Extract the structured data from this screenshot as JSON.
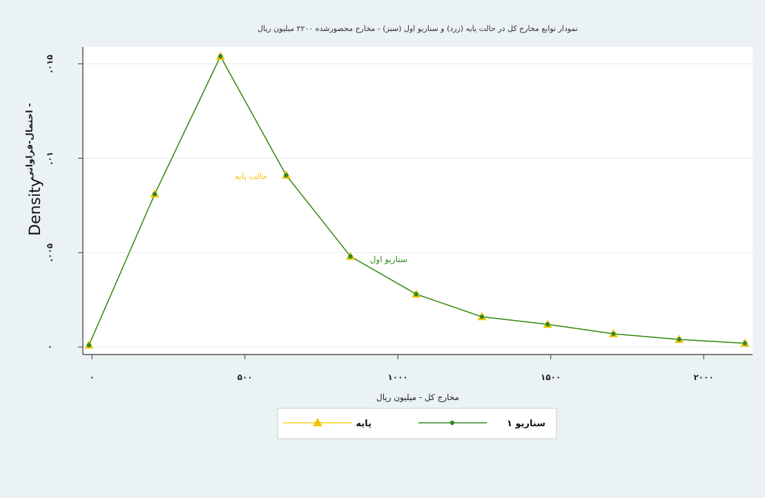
{
  "chart_data": {
    "type": "line",
    "title": "نمودار توابع مخارج کل در حالت پایه (زرد) و سناریو اول (سبز) - مخارج محصورشده ۲۲۰۰ میلیون ریال",
    "xlabel": "مخارج کل - میلیون ریال",
    "ylabel_main": "Density",
    "ylabel_sub": "احتمال-فراوانی -",
    "xlim": [
      -30,
      2160
    ],
    "ylim": [
      -0.0004,
      0.0159
    ],
    "x_ticks": [
      {
        "value": 0,
        "label": "۰"
      },
      {
        "value": 500,
        "label": "۵۰۰"
      },
      {
        "value": 1000,
        "label": "۱۰۰۰"
      },
      {
        "value": 1500,
        "label": "۱۵۰۰"
      },
      {
        "value": 2000,
        "label": "۲۰۰۰"
      }
    ],
    "y_ticks": [
      {
        "value": 0,
        "label": "۰"
      },
      {
        "value": 0.005,
        "label": ".۰۰۵"
      },
      {
        "value": 0.01,
        "label": ".۰۱"
      },
      {
        "value": 0.015,
        "label": ".۰۱۵"
      }
    ],
    "grid": true,
    "x": [
      -10,
      205,
      420,
      635,
      845,
      1060,
      1275,
      1490,
      1705,
      1920,
      2135
    ],
    "series": [
      {
        "name": "پایه",
        "color": "#f2d21a",
        "marker": "triangle",
        "values": [
          0.0001,
          0.0081,
          0.0154,
          0.0091,
          0.0048,
          0.0028,
          0.0016,
          0.0012,
          0.0007,
          0.0004,
          0.0002
        ]
      },
      {
        "name": "سناریو ۱",
        "color": "#2f8a1f",
        "marker": "dot",
        "values": [
          0.0001,
          0.0081,
          0.0154,
          0.0091,
          0.0048,
          0.0028,
          0.0016,
          0.0012,
          0.0007,
          0.0004,
          0.0002
        ]
      }
    ],
    "annotations": [
      {
        "text": "حالت پایه",
        "x": 520,
        "y": 0.0089,
        "color": "#f2c400"
      },
      {
        "text": "سناریو اول",
        "x": 970,
        "y": 0.0045,
        "color": "#2f8a1f"
      }
    ],
    "legend": {
      "placement": "bottom"
    }
  }
}
